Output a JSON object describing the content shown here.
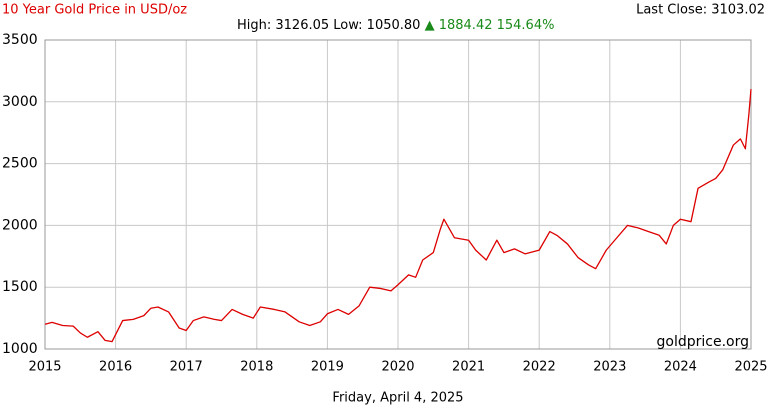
{
  "chart_data": {
    "type": "line",
    "title": "10 Year Gold Price in USD/oz",
    "stats": "High: 3126.05 Low: 1050.80",
    "change": "▲ 1884.42 154.64%",
    "last_close": "Last Close: 3103.02",
    "watermark": "goldprice.org",
    "date": "Friday, April 4, 2025",
    "xlim": [
      2015,
      2025
    ],
    "xticks": [
      2015,
      2016,
      2017,
      2018,
      2019,
      2020,
      2021,
      2022,
      2023,
      2024,
      2025
    ],
    "ylim": [
      1000,
      3500
    ],
    "yticks": [
      1000,
      1500,
      2000,
      2500,
      3000,
      3500
    ],
    "grid": true,
    "x": [
      2015.0,
      2015.1,
      2015.25,
      2015.4,
      2015.5,
      2015.6,
      2015.75,
      2015.85,
      2015.95,
      2016.1,
      2016.25,
      2016.4,
      2016.5,
      2016.6,
      2016.75,
      2016.9,
      2017.0,
      2017.1,
      2017.25,
      2017.4,
      2017.5,
      2017.65,
      2017.8,
      2017.95,
      2018.05,
      2018.25,
      2018.4,
      2018.6,
      2018.75,
      2018.9,
      2019.0,
      2019.15,
      2019.3,
      2019.45,
      2019.6,
      2019.75,
      2019.9,
      2020.0,
      2020.15,
      2020.25,
      2020.35,
      2020.5,
      2020.6,
      2020.65,
      2020.8,
      2021.0,
      2021.1,
      2021.25,
      2021.4,
      2021.5,
      2021.65,
      2021.8,
      2022.0,
      2022.15,
      2022.25,
      2022.4,
      2022.55,
      2022.7,
      2022.8,
      2022.95,
      2023.1,
      2023.25,
      2023.4,
      2023.55,
      2023.7,
      2023.8,
      2023.9,
      2024.0,
      2024.15,
      2024.25,
      2024.4,
      2024.5,
      2024.6,
      2024.75,
      2024.85,
      2024.92,
      2024.97,
      2025.0
    ],
    "series": [
      {
        "name": "Gold",
        "color": "#dd0000",
        "values": [
          1200,
          1215,
          1190,
          1185,
          1130,
          1095,
          1140,
          1070,
          1060,
          1230,
          1240,
          1270,
          1330,
          1340,
          1300,
          1170,
          1150,
          1230,
          1260,
          1240,
          1230,
          1320,
          1280,
          1250,
          1340,
          1320,
          1300,
          1220,
          1190,
          1220,
          1285,
          1320,
          1280,
          1350,
          1500,
          1490,
          1470,
          1520,
          1600,
          1580,
          1720,
          1780,
          1970,
          2050,
          1900,
          1880,
          1800,
          1720,
          1880,
          1780,
          1810,
          1770,
          1800,
          1950,
          1920,
          1850,
          1740,
          1680,
          1650,
          1800,
          1900,
          2000,
          1980,
          1950,
          1920,
          1850,
          2000,
          2050,
          2030,
          2300,
          2350,
          2380,
          2450,
          2650,
          2700,
          2620,
          2900,
          3103
        ]
      }
    ]
  }
}
